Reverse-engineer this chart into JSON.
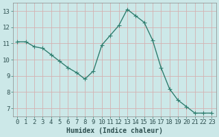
{
  "x": [
    0,
    1,
    2,
    3,
    4,
    5,
    6,
    7,
    8,
    9,
    10,
    11,
    12,
    13,
    14,
    15,
    16,
    17,
    18,
    19,
    20,
    21,
    22,
    23
  ],
  "y": [
    11.1,
    11.1,
    10.8,
    10.7,
    10.3,
    9.9,
    9.5,
    9.2,
    8.8,
    9.3,
    10.9,
    11.5,
    12.1,
    13.1,
    12.7,
    12.3,
    11.2,
    9.5,
    8.2,
    7.5,
    7.1,
    6.7,
    6.7,
    6.7
  ],
  "line_color": "#2e7d6e",
  "marker": "+",
  "marker_color": "#2e7d6e",
  "bg_color": "#cce8e8",
  "grid_color": "#d4b0b0",
  "xlabel": "Humidex (Indice chaleur)",
  "xlabel_fontsize": 7,
  "xlim": [
    -0.5,
    23.5
  ],
  "ylim": [
    6.5,
    13.5
  ],
  "yticks": [
    7,
    8,
    9,
    10,
    11,
    12,
    13
  ],
  "tick_fontsize": 6.5,
  "line_width": 1.0,
  "marker_size": 4,
  "marker_linewidth": 0.8
}
